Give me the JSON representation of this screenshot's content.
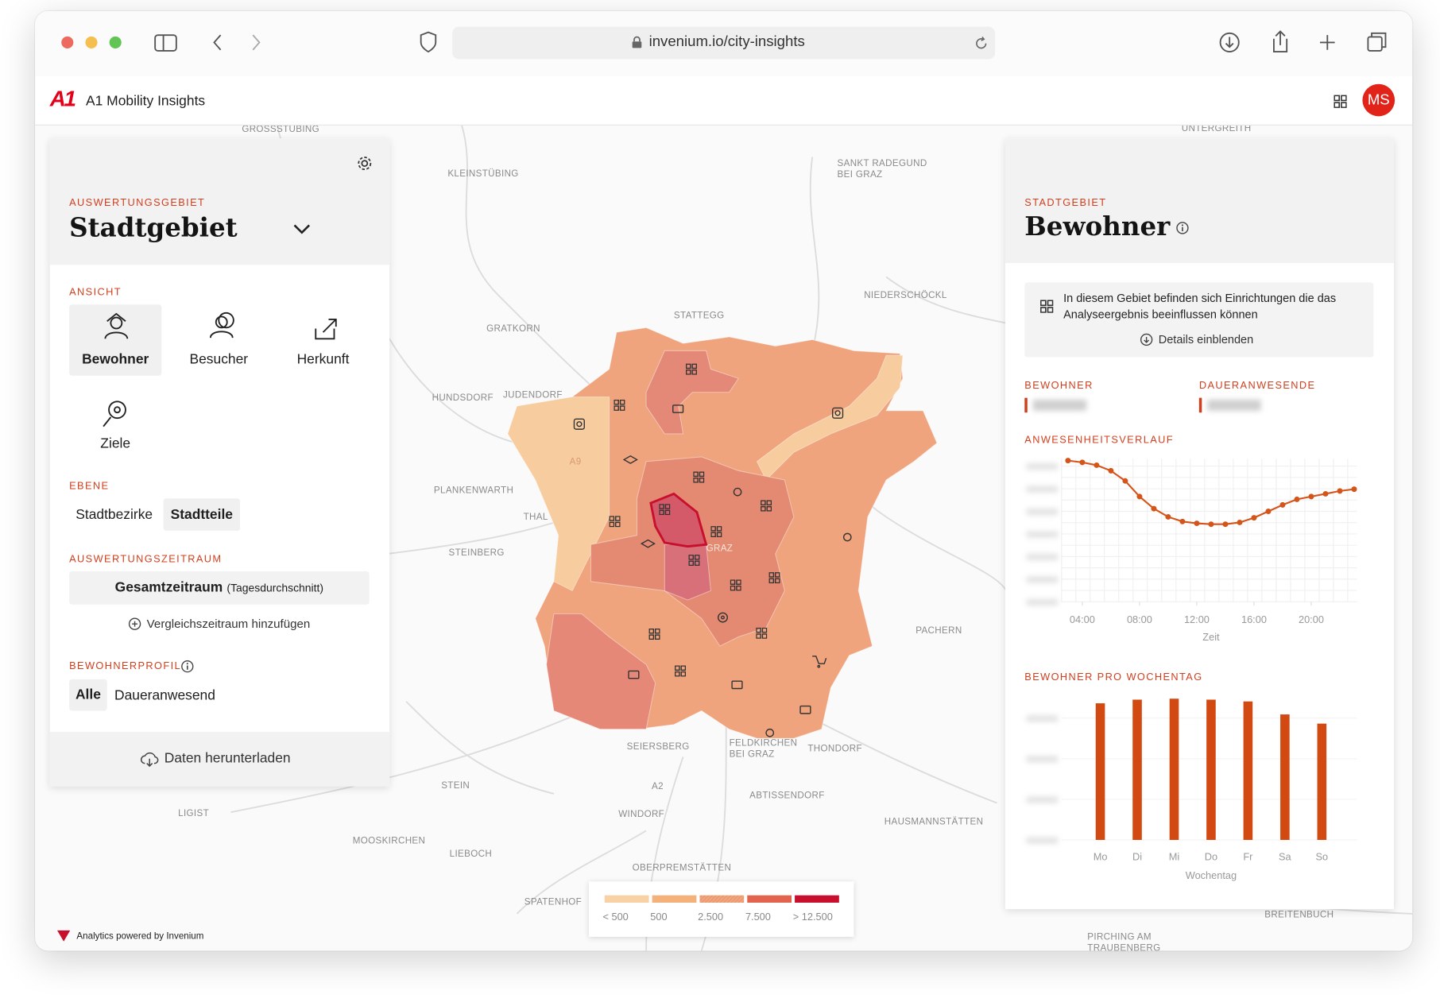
{
  "browser": {
    "url": "invenium.io/city-insights"
  },
  "header": {
    "logo": "A1",
    "title": "A1 Mobility Insights",
    "avatar": "MS"
  },
  "left_panel": {
    "area_label": "AUSWERTUNGSGEBIET",
    "area": "Stadtgebiet",
    "view_label": "ANSICHT",
    "views": [
      "Bewohner",
      "Besucher",
      "Herkunft",
      "Ziele"
    ],
    "layer_label": "EBENE",
    "layers": [
      "Stadtbezirke",
      "Stadtteile"
    ],
    "period_label": "AUSWERTUNGSZEITRAUM",
    "period": "Gesamtzeitraum",
    "period_note": "(Tagesdurchschnitt)",
    "compare": "Vergleichszeitraum hinzufügen",
    "profile_label": "BEWOHNERPROFIL",
    "profiles": [
      "Alle",
      "Daueranwesend"
    ],
    "download": "Daten herunterladen"
  },
  "map": {
    "places": [
      "GROSSSTÜBING",
      "KLEINSTÜBING",
      "SANKT RADEGUND",
      "BEI GRAZ",
      "UNTERGREITH",
      "STATTEGG",
      "NIEDERSCHÖCKL",
      "GRATKORN",
      "HUNDSDORF",
      "JUDENDORF",
      "PLANKENWARTH",
      "THAL",
      "STEINBERG",
      "PACHERN",
      "SEIERSBERG",
      "FELDKIRCHEN",
      "BEI GRAZ",
      "THONDORF",
      "STEIN",
      "ABTISSENDORF",
      "WINDORF",
      "HAUSMANNSTÄTTEN",
      "LIGIST",
      "MOOSKIRCHEN",
      "LIEBOCH",
      "OBERPREMSTÄTTEN",
      "SPATENHOF",
      "BREITENBUCH",
      "PIRCHING AM",
      "TRAUBENBERG",
      "GRAZ",
      "A9",
      "A2"
    ],
    "legend": {
      "labels": [
        "< 500",
        "500",
        "2.500",
        "7.500",
        "> 12.500"
      ],
      "colors": [
        "#f8d1a5",
        "#f4b17a",
        "#eb9877",
        "#e2644c",
        "#c8102e"
      ]
    },
    "credit": "Analytics powered by Invenium"
  },
  "right_panel": {
    "area_label": "STADTGEBIET",
    "title": "Bewohner",
    "notice": "In diesem Gebiet befinden sich Einrichtungen die das Analyseergebnis beeinflussen können",
    "notice_action": "Details einblenden",
    "metrics": [
      "BEWOHNER",
      "DAUERANWESENDE"
    ]
  },
  "chart_data": [
    {
      "type": "line",
      "title": "ANWESENHEITSVERLAUF",
      "x_label": "Zeit",
      "color": "#d4541a",
      "x": [
        3,
        4,
        5,
        6,
        7,
        8,
        9,
        10,
        11,
        12,
        13,
        14,
        15,
        16,
        17,
        18,
        19,
        20,
        21,
        22,
        23
      ],
      "values": [
        12490,
        12330,
        12080,
        11590,
        10690,
        9310,
        8240,
        7510,
        7100,
        6940,
        6860,
        6860,
        7020,
        7430,
        8000,
        8570,
        9060,
        9310,
        9550,
        9800,
        9960
      ],
      "xlim": [
        3,
        23
      ],
      "xticks": [
        {
          "value": 4,
          "label": "04:00"
        },
        {
          "value": 8,
          "label": "08:00"
        },
        {
          "value": 12,
          "label": "12:00"
        },
        {
          "value": 16,
          "label": "16:00"
        },
        {
          "value": 20,
          "label": "20:00"
        }
      ],
      "ylim": [
        0,
        13000
      ]
    },
    {
      "type": "bar",
      "title": "BEWOHNER PRO WOCHENTAG",
      "x_label": "Wochentag",
      "color": "#d24a12",
      "categories": [
        "Mo",
        "Di",
        "Mi",
        "Do",
        "Fr",
        "Sa",
        "So"
      ],
      "values": [
        16820,
        17270,
        17390,
        17270,
        17050,
        15450,
        14320
      ],
      "ylim": [
        0,
        18000
      ]
    }
  ]
}
